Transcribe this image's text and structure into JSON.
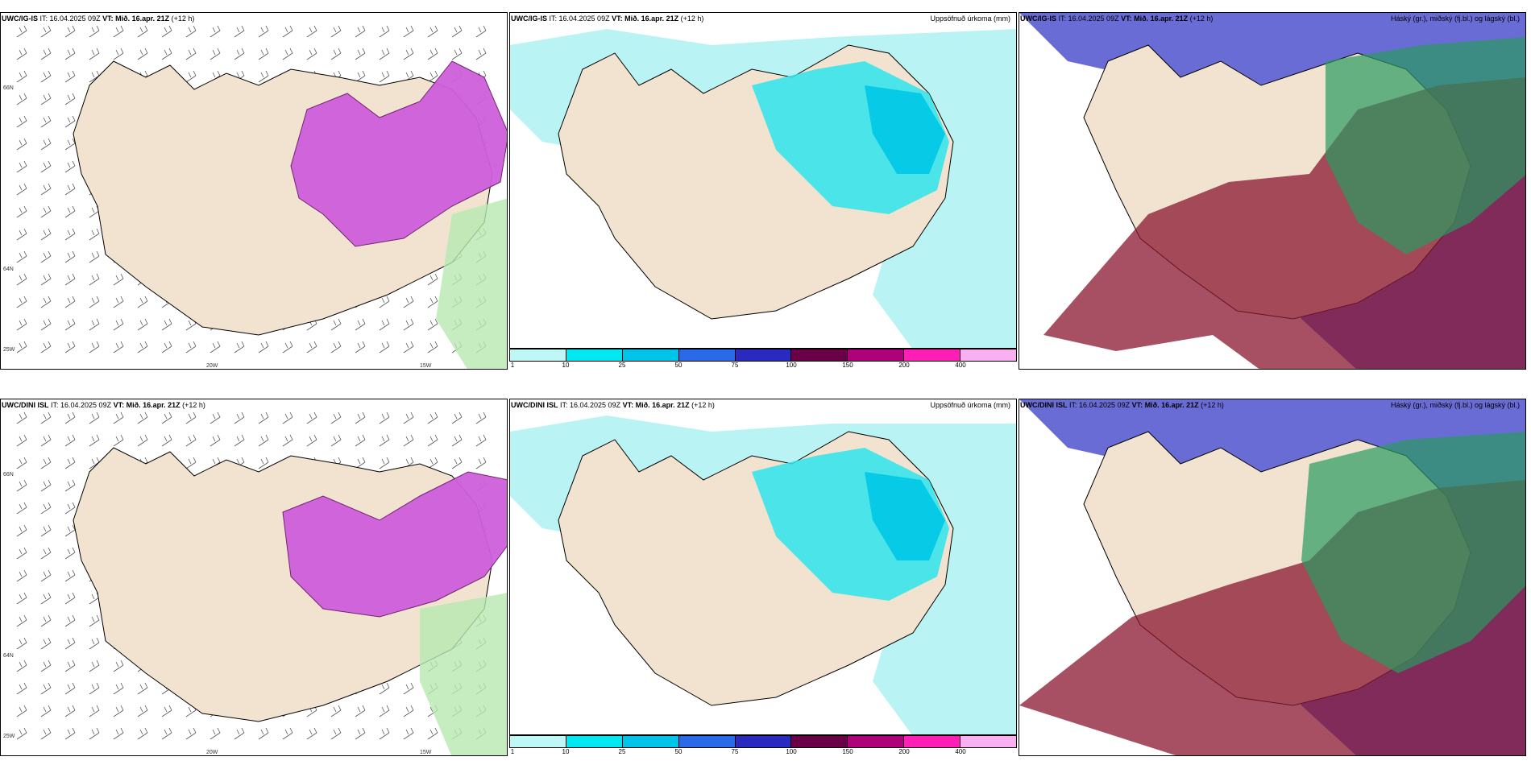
{
  "panels": [
    {
      "model": "UWC/IG-IS",
      "it": "IT: 16.04.2025 09Z",
      "vt": "VT: Mið. 16.apr. 21Z",
      "lead": "(+12 h)",
      "right": ""
    },
    {
      "model": "UWC/IG-IS",
      "it": "IT: 16.04.2025 09Z",
      "vt": "VT: Mið. 16.apr. 21Z",
      "lead": "(+12 h)",
      "right": "Uppsöfnuð úrkoma (mm)"
    },
    {
      "model": "UWC/IG-IS",
      "it": "IT: 16.04.2025 09Z",
      "vt": "VT: Mið. 16.apr. 21Z",
      "lead": "(+12 h)",
      "right": "Háský (gr.), miðský (fj.bl.) og lágský (bl.)"
    },
    {
      "model": "UWC/DINI ISL",
      "it": "IT: 16.04.2025 09Z",
      "vt": "VT: Mið. 16.apr. 21Z",
      "lead": "(+12 h)",
      "right": ""
    },
    {
      "model": "UWC/DINI ISL",
      "it": "IT: 16.04.2025 09Z",
      "vt": "VT: Mið. 16.apr. 21Z",
      "lead": "(+12 h)",
      "right": "Uppsöfnuð úrkoma (mm)"
    },
    {
      "model": "UWC/DINI ISL",
      "it": "IT: 16.04.2025 09Z",
      "vt": "VT: Mið. 16.apr. 21Z",
      "lead": "(+12 h)",
      "right": "Háský (gr.), miðský (fj.bl.) og lágský (bl.)"
    }
  ],
  "axis_labels": {
    "lon_20": "20W",
    "lon_15": "15W",
    "lat_66": "66N",
    "lat_64": "64N",
    "lon_25": "25W"
  },
  "colorbar": {
    "ticks": [
      "1",
      "10",
      "25",
      "50",
      "75",
      "100",
      "150",
      "200",
      "400"
    ],
    "colors": [
      "#bff6f6",
      "#00e8f0",
      "#00c4e8",
      "#2a6ae8",
      "#2a2ac0",
      "#6a0046",
      "#b0007a",
      "#ff1fb6",
      "#f8b0f0"
    ]
  },
  "colors": {
    "land": "#f1e3d0",
    "precip_light": "#b9f3f3",
    "precip_mid": "#2ee4ec",
    "precip_heavy": "#00c6e6",
    "snow": "#d87de0",
    "high_cloud": "#2a9a60",
    "mid_cloud": "#8a1630",
    "low_cloud": "#5a5cd0"
  }
}
